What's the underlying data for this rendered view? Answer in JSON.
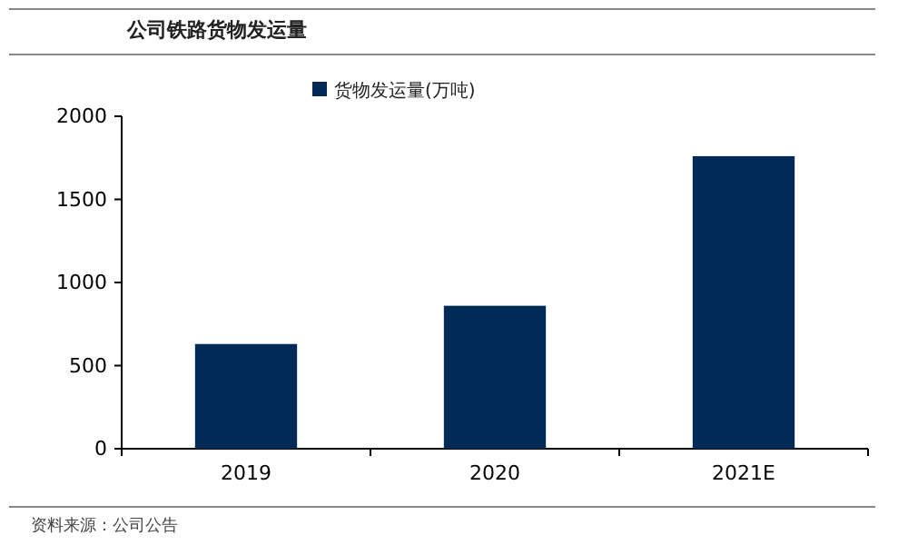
{
  "chart_data": {
    "type": "bar",
    "title": "公司铁路货物发运量",
    "categories": [
      "2019",
      "2020",
      "2021E"
    ],
    "series": [
      {
        "name": "货物发运量(万吨)",
        "color": "#022a56",
        "values": [
          630,
          860,
          1760
        ]
      }
    ],
    "ylim": [
      0,
      2000
    ],
    "yticks": [
      0,
      500,
      1000,
      1500,
      2000
    ],
    "grid": false,
    "legend": "top",
    "annotations": [
      "资料来源：公司公告"
    ]
  }
}
